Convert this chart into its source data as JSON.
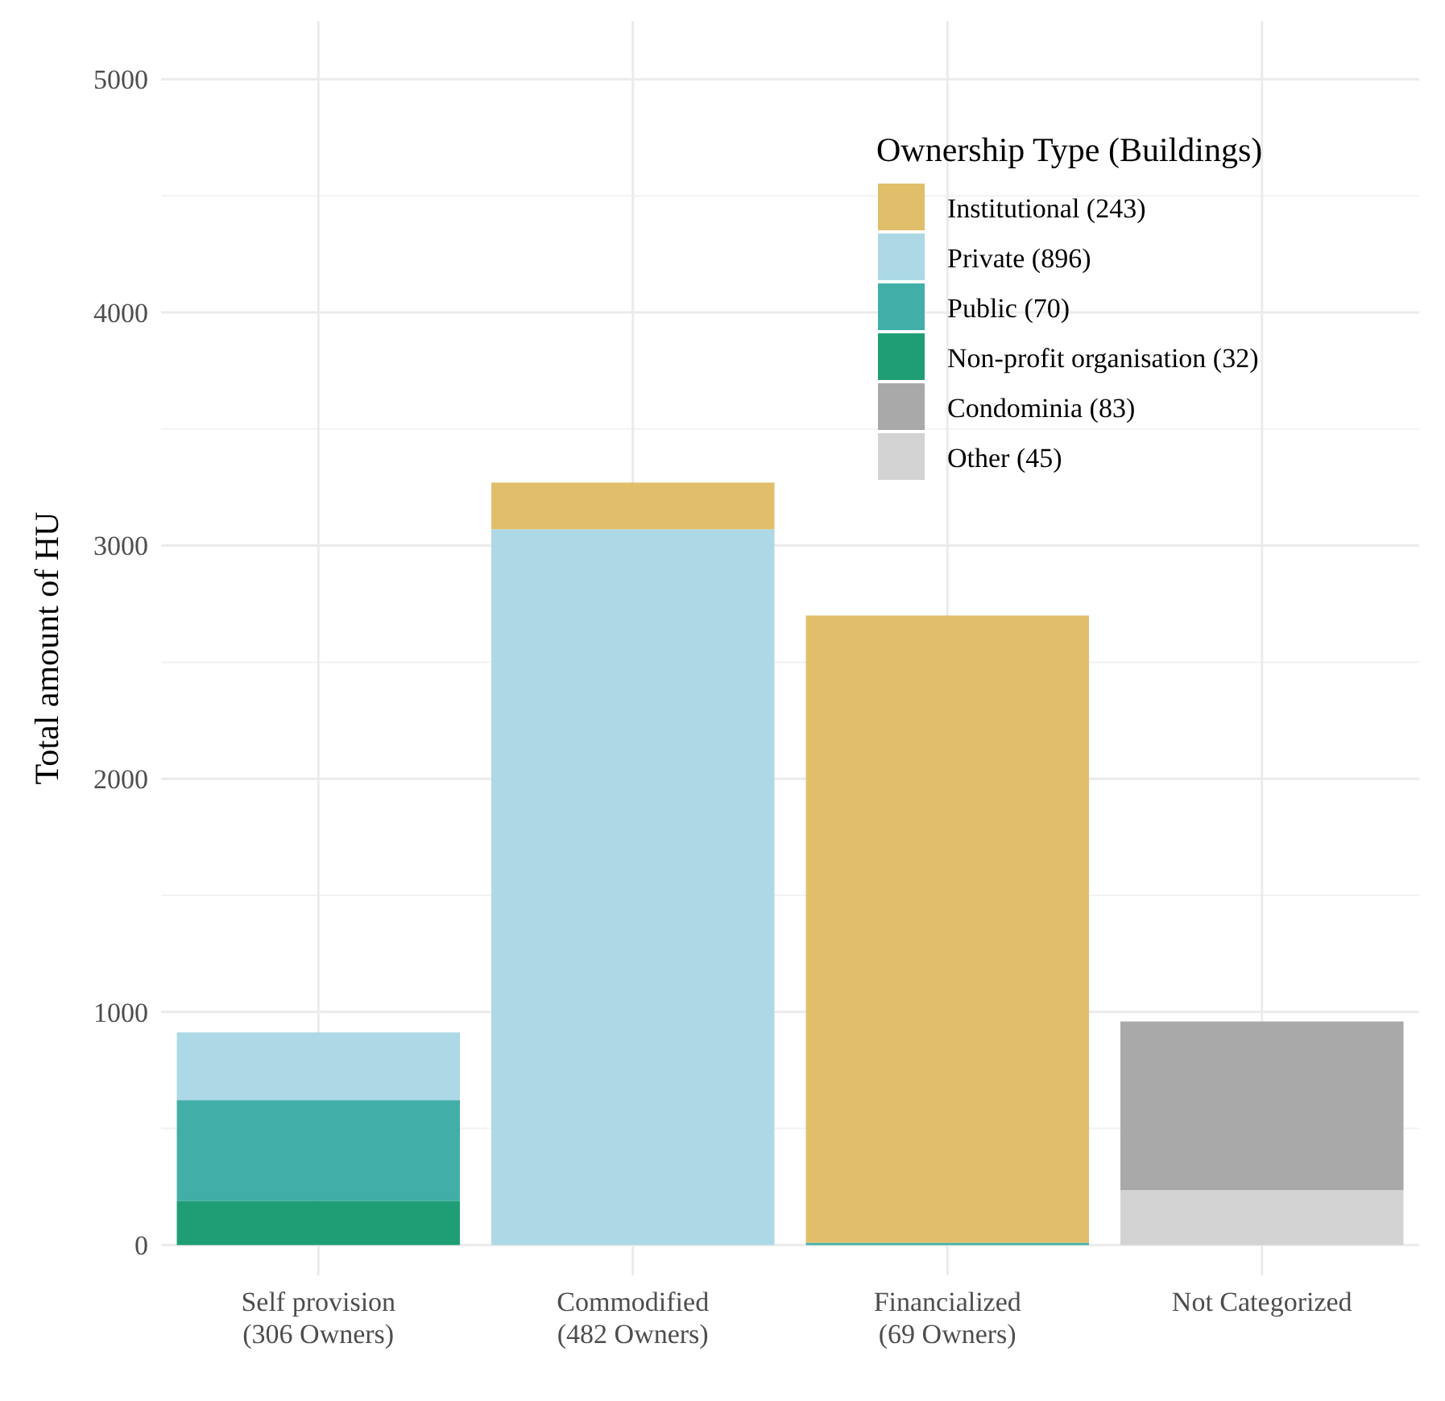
{
  "chart_data": {
    "type": "bar",
    "stacked": true,
    "ylabel": "Total amount of HU",
    "legend_title": "Ownership Type (Buildings)",
    "legend": "top right",
    "grid": true,
    "categories": [
      "Self provision\n(306 Owners)",
      "Commodified\n(482 Owners)",
      "Financialized\n(69 Owners)",
      "Not Categorized"
    ],
    "series": [
      {
        "name": "Other (45)",
        "color": "#d3d3d3",
        "values": [
          null,
          null,
          null,
          236
        ]
      },
      {
        "name": "Condominia (83)",
        "color": "#a9a9a9",
        "values": [
          null,
          null,
          null,
          723
        ]
      },
      {
        "name": "Non-profit organisation (32)",
        "color": "#1f9e76",
        "values": [
          190,
          null,
          null,
          null
        ]
      },
      {
        "name": "Public (70)",
        "color": "#41afa8",
        "values": [
          432,
          null,
          10,
          null
        ]
      },
      {
        "name": "Private (896)",
        "color": "#add8e6",
        "values": [
          290,
          3070,
          null,
          null
        ]
      },
      {
        "name": "Institutional (243)",
        "color": "#e1be6a",
        "values": [
          null,
          200,
          2690,
          null
        ]
      }
    ],
    "ylim": [
      -130,
      5250
    ],
    "yticks": [
      0,
      1000,
      2000,
      3000,
      4000,
      5000
    ]
  }
}
